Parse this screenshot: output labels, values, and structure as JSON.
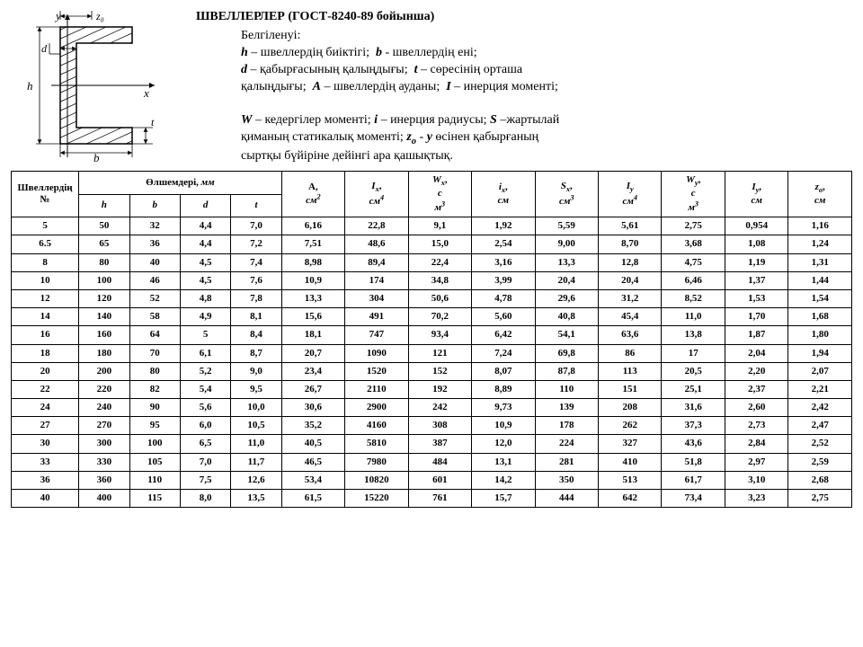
{
  "title": "ШВЕЛЛЕРЛЕР (ГОСТ-8240-89 бойынша)",
  "legend_title": "Белгіленуі:",
  "legend_lines": [
    "h – швеллердің биіктігі;  b - швеллердің ені;",
    "d – қабырғасының қалыңдығы;  t – сөресінің орташа",
    "қалыңдығы;  A – швеллердің ауданы;  I – инерция моменті;",
    "",
    "W – кедергілер моменті; i – инерция радиусы; S –жартылай",
    "қиманың статикалық моменті; z₀ - у өсінен қабырғаның",
    "сыртқы бүйіріне дейінгі ара қашықтық."
  ],
  "diagram_labels": {
    "y": "y",
    "z0": "z₀",
    "d": "d",
    "t": "t",
    "h": "h",
    "x": "x",
    "b": "b"
  },
  "columns": {
    "num": "Швеллердің №",
    "dims": "Өлшемдері, мм",
    "h": "h",
    "b": "b",
    "d": "d",
    "t": "t",
    "A": "A, cм²",
    "Ix": "Iₓ, cм⁴",
    "Wx": "Wₓ, c м³",
    "ix": "iₓ, cм",
    "Sx": "Sₓ, cм³",
    "Iy": "Iᵧ, cм⁴",
    "Wy": "Wᵧ, c м³",
    "Iy2": "Iᵧ, cм",
    "z0": "z₀, cм"
  },
  "rows": [
    [
      "5",
      "50",
      "32",
      "4,4",
      "7,0",
      "6,16",
      "22,8",
      "9,1",
      "1,92",
      "5,59",
      "5,61",
      "2,75",
      "0,954",
      "1,16"
    ],
    [
      "6.5",
      "65",
      "36",
      "4,4",
      "7,2",
      "7,51",
      "48,6",
      "15,0",
      "2,54",
      "9,00",
      "8,70",
      "3,68",
      "1,08",
      "1,24"
    ],
    [
      "8",
      "80",
      "40",
      "4,5",
      "7,4",
      "8,98",
      "89,4",
      "22,4",
      "3,16",
      "13,3",
      "12,8",
      "4,75",
      "1,19",
      "1,31"
    ],
    [
      "10",
      "100",
      "46",
      "4,5",
      "7,6",
      "10,9",
      "174",
      "34,8",
      "3,99",
      "20,4",
      "20,4",
      "6,46",
      "1,37",
      "1,44"
    ],
    [
      "12",
      "120",
      "52",
      "4,8",
      "7,8",
      "13,3",
      "304",
      "50,6",
      "4,78",
      "29,6",
      "31,2",
      "8,52",
      "1,53",
      "1,54"
    ],
    [
      "14",
      "140",
      "58",
      "4,9",
      "8,1",
      "15,6",
      "491",
      "70,2",
      "5,60",
      "40,8",
      "45,4",
      "11,0",
      "1,70",
      "1,68"
    ],
    [
      "16",
      "160",
      "64",
      "5",
      "8,4",
      "18,1",
      "747",
      "93,4",
      "6,42",
      "54,1",
      "63,6",
      "13,8",
      "1,87",
      "1,80"
    ],
    [
      "18",
      "180",
      "70",
      "6,1",
      "8,7",
      "20,7",
      "1090",
      "121",
      "7,24",
      "69,8",
      "86",
      "17",
      "2,04",
      "1,94"
    ],
    [
      "20",
      "200",
      "80",
      "5,2",
      "9,0",
      "23,4",
      "1520",
      "152",
      "8,07",
      "87,8",
      "113",
      "20,5",
      "2,20",
      "2,07"
    ],
    [
      "22",
      "220",
      "82",
      "5,4",
      "9,5",
      "26,7",
      "2110",
      "192",
      "8,89",
      "110",
      "151",
      "25,1",
      "2,37",
      "2,21"
    ],
    [
      "24",
      "240",
      "90",
      "5,6",
      "10,0",
      "30,6",
      "2900",
      "242",
      "9,73",
      "139",
      "208",
      "31,6",
      "2,60",
      "2,42"
    ],
    [
      "27",
      "270",
      "95",
      "6,0",
      "10,5",
      "35,2",
      "4160",
      "308",
      "10,9",
      "178",
      "262",
      "37,3",
      "2,73",
      "2,47"
    ],
    [
      "30",
      "300",
      "100",
      "6,5",
      "11,0",
      "40,5",
      "5810",
      "387",
      "12,0",
      "224",
      "327",
      "43,6",
      "2,84",
      "2,52"
    ],
    [
      "33",
      "330",
      "105",
      "7,0",
      "11,7",
      "46,5",
      "7980",
      "484",
      "13,1",
      "281",
      "410",
      "51,8",
      "2,97",
      "2,59"
    ],
    [
      "36",
      "360",
      "110",
      "7,5",
      "12,6",
      "53,4",
      "10820",
      "601",
      "14,2",
      "350",
      "513",
      "61,7",
      "3,10",
      "2,68"
    ],
    [
      "40",
      "400",
      "115",
      "8,0",
      "13,5",
      "61,5",
      "15220",
      "761",
      "15,7",
      "444",
      "642",
      "73,4",
      "3,23",
      "2,75"
    ]
  ]
}
